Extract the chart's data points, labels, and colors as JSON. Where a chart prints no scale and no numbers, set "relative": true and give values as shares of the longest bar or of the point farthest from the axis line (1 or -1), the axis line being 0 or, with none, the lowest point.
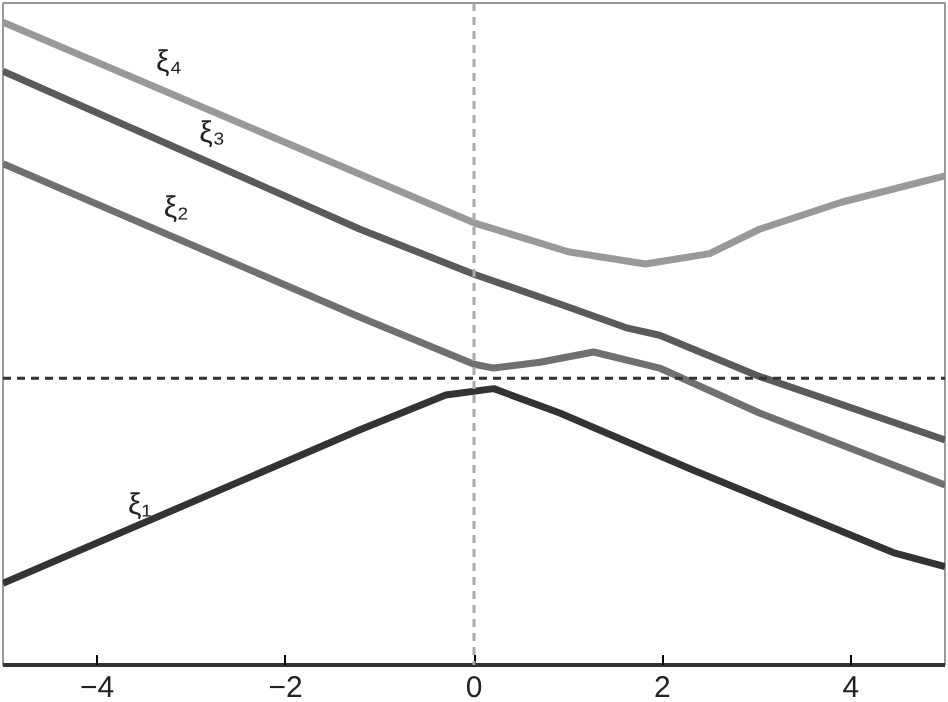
{
  "chart_data": {
    "type": "line",
    "relative": true,
    "xlim": [
      -5,
      5
    ],
    "xticks": [
      -4,
      -2,
      0,
      2,
      4
    ],
    "tick_labels": "x",
    "grid": false,
    "marker": "none",
    "line_style": "solid",
    "series": [
      {
        "name": "ξ₁",
        "color": "#333333",
        "x": [
          -5,
          -1.21,
          -0.3,
          0.21,
          0.91,
          2.33,
          4.45,
          5
        ],
        "values": [
          0.127,
          0.366,
          0.42,
          0.43,
          0.392,
          0.303,
          0.175,
          0.153
        ]
      },
      {
        "name": "ξ₂",
        "color": "#707070",
        "x": [
          -5,
          -1.21,
          0,
          0.21,
          0.7,
          1.27,
          1.97,
          3.03,
          5
        ],
        "values": [
          0.78,
          0.541,
          0.468,
          0.462,
          0.471,
          0.487,
          0.462,
          0.392,
          0.28
        ]
      },
      {
        "name": "ξ₃",
        "color": "#5a5a5a",
        "x": [
          -5,
          -1.21,
          0,
          1.0,
          1.61,
          1.97,
          3.03,
          5
        ],
        "values": [
          0.924,
          0.678,
          0.608,
          0.557,
          0.525,
          0.513,
          0.449,
          0.35
        ]
      },
      {
        "name": "ξ₄",
        "color": "#999999",
        "x": [
          -5,
          -2.5,
          0,
          1,
          1.82,
          2.5,
          3.03,
          3.9,
          5
        ],
        "values": [
          1.0,
          0.844,
          0.688,
          0.643,
          0.624,
          0.64,
          0.678,
          0.72,
          0.761
        ]
      }
    ],
    "ref_lines": [
      {
        "axis": "y",
        "value": 0.446,
        "color": "#333333",
        "line_style": "dashed"
      },
      {
        "axis": "x",
        "value": 0,
        "color": "#aaaaaa",
        "line_style": "dashed"
      }
    ]
  }
}
